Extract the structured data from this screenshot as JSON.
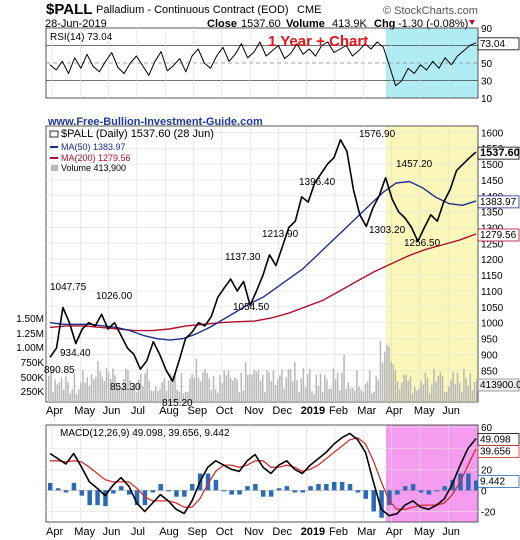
{
  "header": {
    "symbol": "$PALL",
    "name": "Palladium - Continuous Contract (EOD)",
    "exchange": "CME",
    "date": "28-Jun-2019",
    "close_label": "Close",
    "close": "1537.60",
    "volume_label": "Volume",
    "volume": "413.9K",
    "chg_label": "Chg",
    "chg": "-1.30 (-0.08%)",
    "brand": "© StockCharts.com",
    "annotation": "1 Year + Chart",
    "website": "www.Free-Bullion-Investment-Guide.com"
  },
  "colors": {
    "price": "#000000",
    "ma50": "#1f2f8f",
    "ma200": "#b0102a",
    "volume": "#b8b8b8",
    "rsi_highlight": "#b0ecf4",
    "price_highlight": "#fbf7b8",
    "macd_highlight": "#f59cf0",
    "annotation": "#e8141c",
    "website": "#1f3aa0",
    "histogram": "#2a6ab8",
    "signal": "#d43030",
    "chg": "#b0102a"
  },
  "chart_data": [
    {
      "type": "line",
      "panel": "rsi",
      "title": "RSI(14) 73.04",
      "last_value": "73.04",
      "ylim": [
        10,
        90
      ],
      "y_ticks": [
        90,
        70,
        50,
        30,
        10
      ],
      "reference_lines": [
        70,
        50,
        30
      ],
      "series": [
        {
          "values": [
            48,
            42,
            52,
            38,
            56,
            44,
            60,
            46,
            40,
            52,
            62,
            45,
            38,
            50,
            58,
            47,
            36,
            52,
            63,
            41,
            47,
            55,
            40,
            58,
            66,
            50,
            44,
            58,
            68,
            52,
            60,
            72,
            56,
            62,
            74,
            58,
            64,
            70,
            55,
            61,
            72,
            60,
            66,
            58,
            70,
            74,
            62,
            66,
            70,
            58,
            64,
            72,
            66,
            74,
            68,
            46,
            24,
            30,
            44,
            38,
            48,
            42,
            52,
            44,
            56,
            48,
            58,
            64,
            70,
            73.04
          ]
        }
      ]
    },
    {
      "type": "line",
      "panel": "price",
      "title": "$PALL (Daily) 1537.60 (28 Jun)",
      "ylim": [
        750,
        1620
      ],
      "y_ticks": [
        1600,
        1550,
        1500,
        1450,
        1400,
        1350,
        1300,
        1250,
        1200,
        1150,
        1100,
        1050,
        1000,
        950,
        900,
        850,
        800
      ],
      "volume_ticks": [
        "1.50M",
        "1.25M",
        "1.00M",
        "750K",
        "500K",
        "250K"
      ],
      "x_labels": [
        "Apr",
        "May",
        "Jun",
        "Jul",
        "Aug",
        "Sep",
        "Oct",
        "Nov",
        "Dec",
        "2019",
        "Feb",
        "Mar",
        "Apr",
        "May",
        "Jun"
      ],
      "series": [
        {
          "name": "$PALL (Daily) 1537.60",
          "values": [
            890.85,
            920,
            1047.75,
            1000,
            934.4,
            980,
            1000,
            990,
            1026,
            980,
            1000,
            960,
            920,
            900,
            853.3,
            880,
            940,
            900,
            850,
            815.2,
            880,
            950,
            970,
            1000,
            990,
            1020,
            1080,
            1110,
            1137.3,
            1100,
            1130,
            1054.5,
            1100,
            1150,
            1213.9,
            1180,
            1240,
            1300,
            1320,
            1396.4,
            1380,
            1440,
            1470,
            1500,
            1520,
            1576.9,
            1540,
            1420,
            1340,
            1303.2,
            1360,
            1400,
            1457.2,
            1390,
            1350,
            1330,
            1300,
            1256.5,
            1300,
            1340,
            1320,
            1380,
            1420,
            1480,
            1500,
            1520,
            1537.6
          ]
        },
        {
          "name": "MA(50) 1383.97",
          "values": [
            1000,
            995,
            995,
            995,
            990,
            985,
            975,
            960,
            950,
            945,
            950,
            965,
            985,
            1010,
            1035,
            1060,
            1080,
            1110,
            1140,
            1170,
            1210,
            1250,
            1290,
            1330,
            1370,
            1410,
            1440,
            1445,
            1425,
            1395,
            1375,
            1370,
            1383.97
          ]
        },
        {
          "name": "MA(200) 1279.56",
          "values": [
            985,
            990,
            990,
            985,
            980,
            975,
            975,
            980,
            990,
            995,
            1000,
            1003,
            1005,
            1015,
            1030,
            1050,
            1070,
            1100,
            1130,
            1160,
            1185,
            1210,
            1230,
            1245,
            1260,
            1279.56
          ]
        }
      ],
      "annotations": [
        "1047.75",
        "1026.00",
        "934.40",
        "890.85",
        "853.30",
        "815.20",
        "1137.30",
        "1054.50",
        "1213.90",
        "1396.40",
        "1576.90",
        "1457.20",
        "1303.20",
        "1256.50"
      ],
      "last_labels": [
        "1537.60",
        "1383.97",
        "1279.56",
        "413900.0"
      ],
      "volume_last": "413,900"
    },
    {
      "type": "line",
      "panel": "macd",
      "title": "MACD(12,26,9) 49.098, 39.656, 9.442",
      "ylim": [
        -30,
        62
      ],
      "y_ticks": [
        60,
        40,
        20,
        0,
        -20
      ],
      "series": [
        {
          "name": "MACD",
          "values": [
            35,
            30,
            25,
            35,
            22,
            8,
            2,
            -5,
            5,
            12,
            4,
            -12,
            -20,
            -12,
            -4,
            -10,
            -18,
            -22,
            -10,
            8,
            22,
            28,
            24,
            20,
            18,
            28,
            34,
            22,
            16,
            24,
            28,
            20,
            16,
            24,
            30,
            36,
            44,
            50,
            54,
            48,
            36,
            8,
            -18,
            -24,
            -22,
            -14,
            -10,
            -16,
            -18,
            -14,
            -8,
            6,
            24,
            40,
            49.098
          ]
        },
        {
          "name": "Signal",
          "values": [
            28,
            28,
            27,
            28,
            27,
            22,
            16,
            10,
            8,
            8,
            8,
            2,
            -6,
            -10,
            -10,
            -10,
            -12,
            -16,
            -16,
            -8,
            6,
            18,
            24,
            24,
            22,
            24,
            28,
            28,
            22,
            22,
            24,
            22,
            18,
            20,
            24,
            30,
            36,
            42,
            48,
            50,
            44,
            28,
            8,
            -10,
            -18,
            -18,
            -16,
            -14,
            -14,
            -14,
            -12,
            -4,
            8,
            24,
            39.656
          ]
        }
      ],
      "last_labels": [
        "49.098",
        "39.656",
        "9.442"
      ]
    }
  ],
  "legend": {
    "ma50": "MA(50) 1383.97",
    "ma200": "MA(200) 1279.56",
    "volume": "Volume 413,900",
    "price": "$PALL (Daily) 1537.60 (28 Jun)"
  }
}
